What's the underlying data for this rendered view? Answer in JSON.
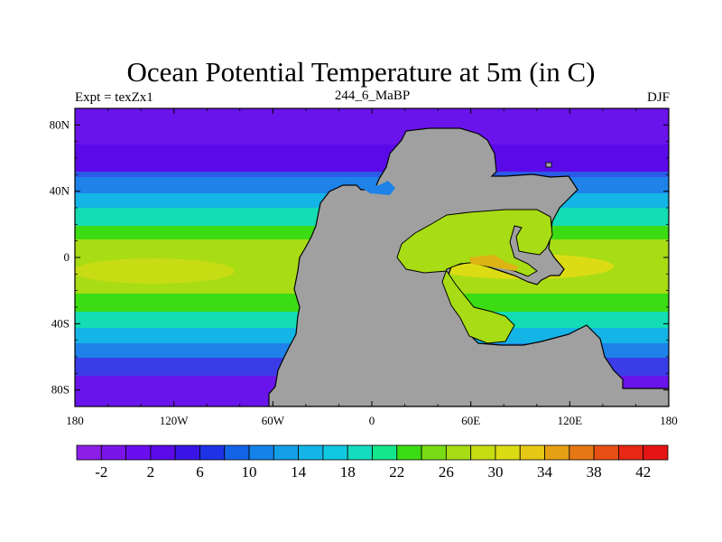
{
  "map": {
    "title": "Ocean Potential Temperature at 5m (in C)",
    "left_label": "Expt = texZx1",
    "center_label": "244_6_MaBP",
    "right_label": "DJF",
    "lat_ticks": [
      {
        "value": 80,
        "label": "80N"
      },
      {
        "value": 40,
        "label": "40N"
      },
      {
        "value": 0,
        "label": "0"
      },
      {
        "value": -40,
        "label": "40S"
      },
      {
        "value": -80,
        "label": "80S"
      }
    ],
    "lon_ticks": [
      {
        "value": -180,
        "label": "180"
      },
      {
        "value": -120,
        "label": "120W"
      },
      {
        "value": -60,
        "label": "60W"
      },
      {
        "value": 0,
        "label": "0"
      },
      {
        "value": 60,
        "label": "60E"
      },
      {
        "value": 120,
        "label": "120E"
      },
      {
        "value": 180,
        "label": "180"
      }
    ],
    "extent": {
      "lon": [
        -180,
        180
      ],
      "lat": [
        -90,
        90
      ]
    },
    "land_color": "#a0a0a0",
    "colorbar": {
      "colors": [
        "#8c1ee6",
        "#7b14e8",
        "#6a0ef0",
        "#5a0ae8",
        "#3a14e6",
        "#1e32e6",
        "#1464e8",
        "#1482e8",
        "#14a0e6",
        "#14b4e6",
        "#10c8e0",
        "#14dcbe",
        "#14e68c",
        "#3cdc14",
        "#78dc14",
        "#a8dc14",
        "#c8dc14",
        "#dcdc14",
        "#e6c814",
        "#e6a014",
        "#e67814",
        "#e65014",
        "#e62814",
        "#e61414"
      ],
      "labels": [
        {
          "index": 1,
          "text": "-2"
        },
        {
          "index": 3,
          "text": "2"
        },
        {
          "index": 5,
          "text": "6"
        },
        {
          "index": 7,
          "text": "10"
        },
        {
          "index": 9,
          "text": "14"
        },
        {
          "index": 11,
          "text": "18"
        },
        {
          "index": 13,
          "text": "22"
        },
        {
          "index": 15,
          "text": "26"
        },
        {
          "index": 17,
          "text": "30"
        },
        {
          "index": 19,
          "text": "34"
        },
        {
          "index": 21,
          "text": "38"
        },
        {
          "index": 23,
          "text": "42"
        }
      ]
    }
  }
}
